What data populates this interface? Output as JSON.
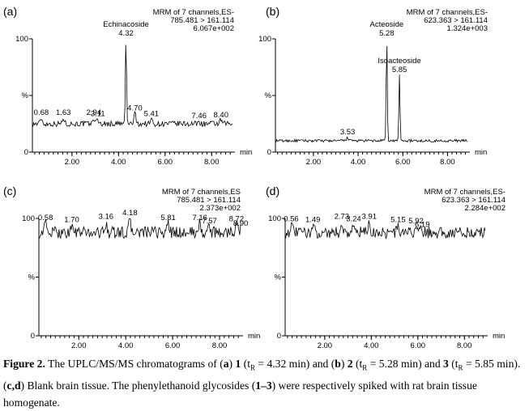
{
  "caption": {
    "label": "Figure 2.",
    "text_1": " The UPLC/MS/MS chromatograms of (",
    "a": "a",
    "text_2": ") ",
    "c1": "1",
    "t1_pre": " (t",
    "sub": "R",
    "t1_post": " = 4.32 min) and (",
    "b": "b",
    "text_3": ") ",
    "c2": "2",
    "t2_post": " = 5.28 min) and ",
    "c3": "3",
    "t3_post": " = 5.85 min). (",
    "cd": "c,d",
    "text_4": ") Blank brain tissue. The phenylethanoid glycosides (",
    "range": "1–3",
    "text_5": ") were respectively spiked with rat brain tissue homogenate."
  },
  "chart_data": [
    {
      "panel": "(a)",
      "type": "line",
      "header": [
        "MRM of 7 channels,ES-",
        "785.481 > 161.114",
        "6.067e+002"
      ],
      "xlabel": "min",
      "xlim": [
        0.3,
        9.0
      ],
      "ylim": [
        0,
        100
      ],
      "y_ticks": [
        "0",
        "%",
        "100"
      ],
      "x_ticks": [
        "2.00",
        "4.00",
        "6.00",
        "8.00"
      ],
      "baseline": 25,
      "noise": 2.5,
      "peaks": [
        {
          "x": 4.32,
          "y": 100,
          "label": [
            "Echinacoside",
            "4.32"
          ]
        },
        {
          "x": 0.68,
          "y": 30,
          "label": [
            "0.68"
          ]
        },
        {
          "x": 1.63,
          "y": 30,
          "label": [
            "1.63"
          ]
        },
        {
          "x": 2.94,
          "y": 30,
          "label": [
            "2.94"
          ]
        },
        {
          "x": 3.11,
          "y": 29,
          "label": [
            "3.11"
          ]
        },
        {
          "x": 4.7,
          "y": 34,
          "label": [
            "4.70"
          ]
        },
        {
          "x": 5.41,
          "y": 29,
          "label": [
            "5.41"
          ]
        },
        {
          "x": 7.46,
          "y": 27,
          "label": [
            "7.46"
          ]
        },
        {
          "x": 8.4,
          "y": 28,
          "label": [
            "8.40"
          ]
        }
      ]
    },
    {
      "panel": "(b)",
      "type": "line",
      "header": [
        "MRM of 7 channels,ES-",
        "623.363 > 161.114",
        "1.324e+003"
      ],
      "xlabel": "min",
      "xlim": [
        0.3,
        9.0
      ],
      "ylim": [
        0,
        100
      ],
      "y_ticks": [
        "0",
        "%",
        "100"
      ],
      "x_ticks": [
        "2.00",
        "4.00",
        "6.00",
        "8.00"
      ],
      "baseline": 10,
      "noise": 1.2,
      "peaks": [
        {
          "x": 5.28,
          "y": 100,
          "label": [
            "Acteoside",
            "5.28"
          ]
        },
        {
          "x": 5.85,
          "y": 68,
          "label": [
            "Isoacteoside",
            "5.85"
          ]
        },
        {
          "x": 3.53,
          "y": 13,
          "label": [
            "3.53"
          ]
        }
      ]
    },
    {
      "panel": "(c)",
      "type": "line",
      "header": [
        "MRM of 7 channels,ES",
        "785.481 > 161.114",
        "2.373e+002"
      ],
      "xlabel": "min",
      "xlim": [
        0.3,
        9.0
      ],
      "ylim": [
        0,
        100
      ],
      "y_ticks": [
        "0",
        "%",
        "100"
      ],
      "x_ticks": [
        "2.00",
        "4.00",
        "6.00",
        "8.00"
      ],
      "baseline": 88,
      "noise": 5,
      "peaks": [
        {
          "x": 0.58,
          "y": 96,
          "label": [
            "0.58"
          ]
        },
        {
          "x": 1.7,
          "y": 94,
          "label": [
            "1.70"
          ]
        },
        {
          "x": 3.16,
          "y": 97,
          "label": [
            "3.16"
          ]
        },
        {
          "x": 4.18,
          "y": 100,
          "label": [
            "4.18"
          ]
        },
        {
          "x": 5.81,
          "y": 96,
          "label": [
            "5.81"
          ]
        },
        {
          "x": 7.16,
          "y": 96,
          "label": [
            "7.16"
          ]
        },
        {
          "x": 7.57,
          "y": 93,
          "label": [
            "7.57"
          ]
        },
        {
          "x": 8.72,
          "y": 95,
          "label": [
            "8.72"
          ]
        },
        {
          "x": 8.9,
          "y": 91,
          "label": [
            "8.90"
          ]
        }
      ]
    },
    {
      "panel": "(d)",
      "type": "line",
      "header": [
        "MRM of 7 channels,ES-",
        "623.363 > 161.114",
        "2.284e+002"
      ],
      "xlabel": "min",
      "xlim": [
        0.3,
        9.0
      ],
      "ylim": [
        0,
        100
      ],
      "y_ticks": [
        "0",
        "%",
        "100"
      ],
      "x_ticks": [
        "2.00",
        "4.00",
        "6.00",
        "8.00"
      ],
      "baseline": 88,
      "noise": 5,
      "peaks": [
        {
          "x": 0.56,
          "y": 95,
          "label": [
            "0.56"
          ]
        },
        {
          "x": 1.49,
          "y": 94,
          "label": [
            "1.49"
          ]
        },
        {
          "x": 2.73,
          "y": 97,
          "label": [
            "2.73"
          ]
        },
        {
          "x": 3.24,
          "y": 95,
          "label": [
            "3.24"
          ]
        },
        {
          "x": 3.91,
          "y": 97,
          "label": [
            "3.91"
          ]
        },
        {
          "x": 5.15,
          "y": 94,
          "label": [
            "5.15"
          ]
        },
        {
          "x": 5.92,
          "y": 93,
          "label": [
            "5.92"
          ]
        },
        {
          "x": 6.19,
          "y": 90,
          "label": [
            "6.19"
          ]
        }
      ]
    }
  ]
}
